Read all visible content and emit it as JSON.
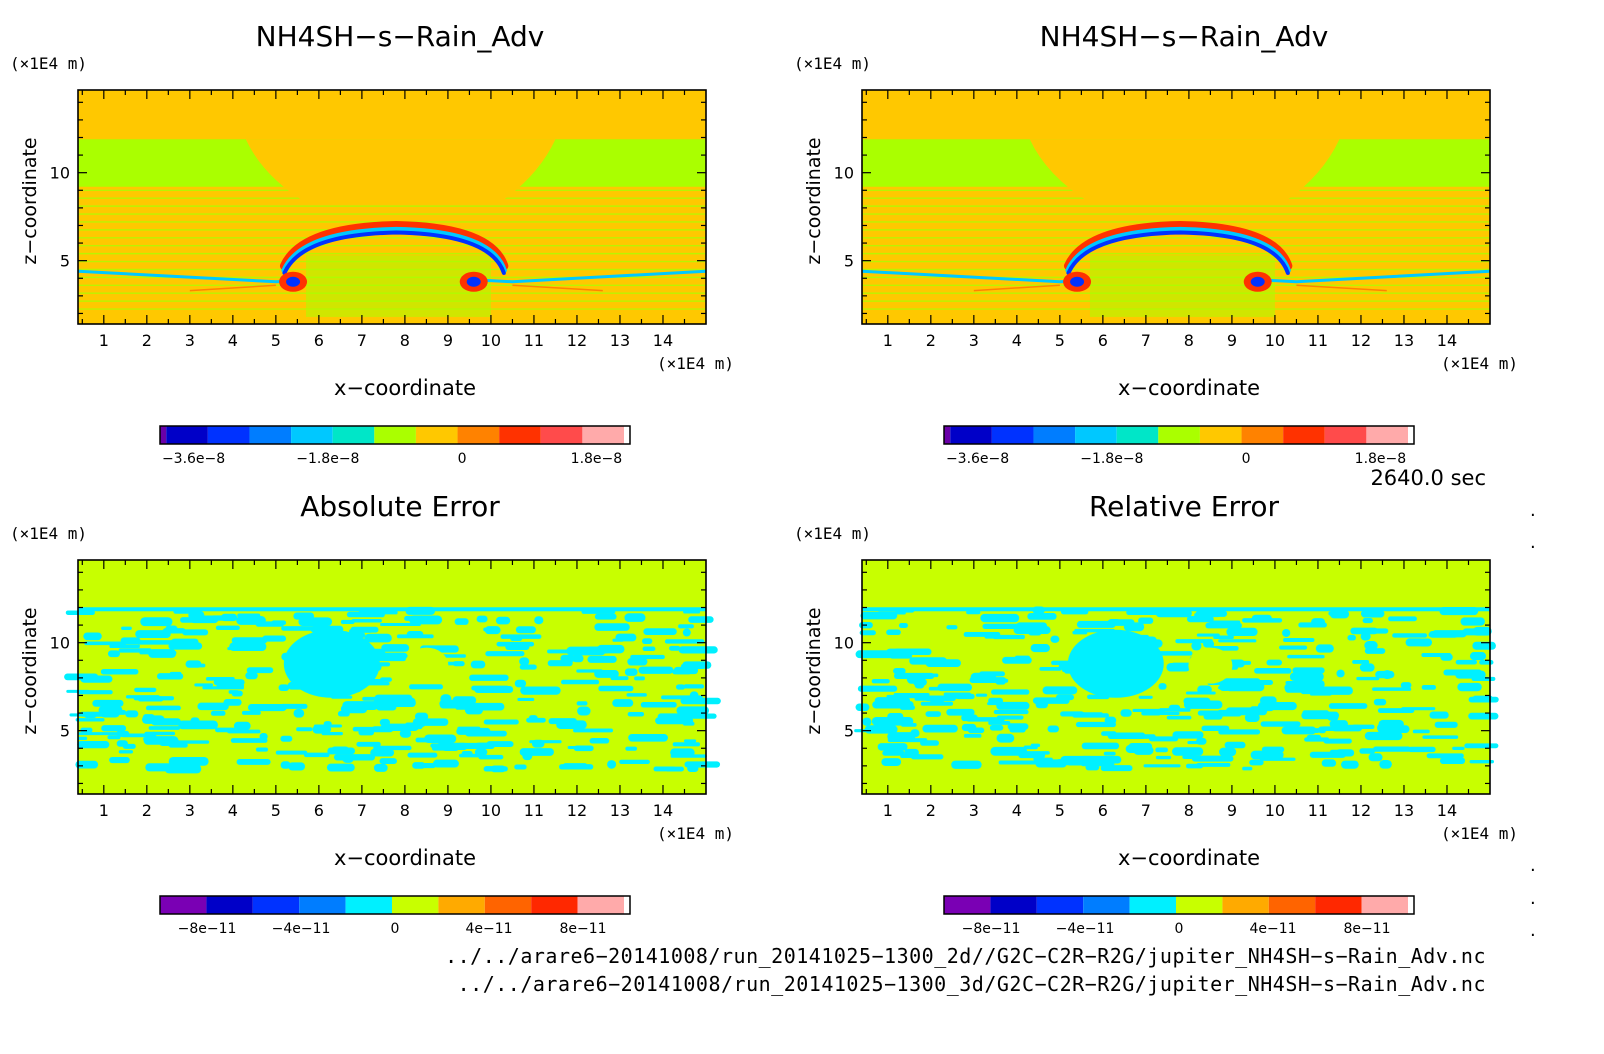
{
  "charts": [
    {
      "id": "p1",
      "title": "NH4SH−s−Rain_Adv",
      "y_unit": "(×1E4 m)",
      "x_unit": "(×1E4 m)",
      "xlabel": "x−coordinate",
      "ylabel": "z−coordinate",
      "x_ticks": [
        "1",
        "2",
        "3",
        "4",
        "5",
        "6",
        "7",
        "8",
        "9",
        "10",
        "11",
        "12",
        "13",
        "14"
      ],
      "y_ticks": [
        "5",
        "10"
      ],
      "colorbar": {
        "colors": [
          "#6a00a8",
          "#0000c8",
          "#0032ff",
          "#007dff",
          "#00c8ff",
          "#00e6c8",
          "#aaff00",
          "#ffc800",
          "#ff8200",
          "#ff3200",
          "#ff4b4b",
          "#ffaaaa"
        ],
        "tick_labels": [
          "−3.6e−8",
          "−1.8e−8",
          "0",
          "1.8e−8"
        ]
      }
    },
    {
      "id": "p2",
      "title": "NH4SH−s−Rain_Adv",
      "y_unit": "(×1E4 m)",
      "x_unit": "(×1E4 m)",
      "xlabel": "x−coordinate",
      "ylabel": "z−coordinate",
      "x_ticks": [
        "1",
        "2",
        "3",
        "4",
        "5",
        "6",
        "7",
        "8",
        "9",
        "10",
        "11",
        "12",
        "13",
        "14"
      ],
      "y_ticks": [
        "5",
        "10"
      ],
      "colorbar": {
        "colors": [
          "#6a00a8",
          "#0000c8",
          "#0032ff",
          "#007dff",
          "#00c8ff",
          "#00e6c8",
          "#aaff00",
          "#ffc800",
          "#ff8200",
          "#ff3200",
          "#ff4b4b",
          "#ffaaaa"
        ],
        "tick_labels": [
          "−3.6e−8",
          "−1.8e−8",
          "0",
          "1.8e−8"
        ]
      }
    },
    {
      "id": "p3",
      "title": "Absolute Error",
      "y_unit": "(×1E4 m)",
      "x_unit": "(×1E4 m)",
      "xlabel": "x−coordinate",
      "ylabel": "z−coordinate",
      "x_ticks": [
        "1",
        "2",
        "3",
        "4",
        "5",
        "6",
        "7",
        "8",
        "9",
        "10",
        "11",
        "12",
        "13",
        "14"
      ],
      "y_ticks": [
        "5",
        "10"
      ],
      "colorbar": {
        "colors": [
          "#7a00b4",
          "#0000c8",
          "#0032ff",
          "#007dff",
          "#00f0ff",
          "#c8ff00",
          "#ffaa00",
          "#ff6400",
          "#ff2800",
          "#ffaaaa"
        ],
        "tick_labels": [
          "−8e−11",
          "−4e−11",
          "0",
          "4e−11",
          "8e−11"
        ]
      }
    },
    {
      "id": "p4",
      "title": "Relative Error",
      "y_unit": "(×1E4 m)",
      "x_unit": "(×1E4 m)",
      "xlabel": "x−coordinate",
      "ylabel": "z−coordinate",
      "x_ticks": [
        "1",
        "2",
        "3",
        "4",
        "5",
        "6",
        "7",
        "8",
        "9",
        "10",
        "11",
        "12",
        "13",
        "14"
      ],
      "y_ticks": [
        "5",
        "10"
      ],
      "colorbar": {
        "colors": [
          "#7a00b4",
          "#0000c8",
          "#0032ff",
          "#007dff",
          "#00f0ff",
          "#c8ff00",
          "#ffaa00",
          "#ff6400",
          "#ff2800",
          "#ffaaaa"
        ],
        "tick_labels": [
          "−8e−11",
          "−4e−11",
          "0",
          "4e−11",
          "8e−11"
        ]
      }
    }
  ],
  "chart_data": [
    {
      "type": "heatmap",
      "title": "NH4SH−s−Rain_Adv",
      "xlabel": "x−coordinate",
      "ylabel": "z−coordinate",
      "x_range": [
        0,
        15
      ],
      "y_range": [
        1,
        15
      ],
      "colorbar_range": [
        -4.05e-08,
        2.25e-08
      ],
      "colorbar_labels": [
        "−3.6e−8",
        "−1.8e−8",
        "0",
        "1.8e−8"
      ]
    },
    {
      "type": "heatmap",
      "title": "NH4SH−s−Rain_Adv",
      "xlabel": "x−coordinate",
      "ylabel": "z−coordinate",
      "x_range": [
        0,
        15
      ],
      "y_range": [
        1,
        15
      ],
      "colorbar_range": [
        -4.05e-08,
        2.25e-08
      ],
      "colorbar_labels": [
        "−3.6e−8",
        "−1.8e−8",
        "0",
        "1.8e−8"
      ]
    },
    {
      "type": "heatmap",
      "title": "Absolute Error",
      "xlabel": "x−coordinate",
      "ylabel": "z−coordinate",
      "x_range": [
        0,
        15
      ],
      "y_range": [
        1,
        15
      ],
      "colorbar_range": [
        -1e-10,
        1e-10
      ],
      "colorbar_labels": [
        "−8e−11",
        "−4e−11",
        "0",
        "4e−11",
        "8e−11"
      ]
    },
    {
      "type": "heatmap",
      "title": "Relative Error",
      "xlabel": "x−coordinate",
      "ylabel": "z−coordinate",
      "x_range": [
        0,
        15
      ],
      "y_range": [
        1,
        15
      ],
      "colorbar_range": [
        -1e-10,
        1e-10
      ],
      "colorbar_labels": [
        "−8e−11",
        "−4e−11",
        "0",
        "4e−11",
        "8e−11"
      ]
    }
  ],
  "timestamp": "2640.0 sec",
  "footer": {
    "line1": "../../arare6−20141008/run_20141025−1300_2d//G2C−C2R−R2G/jupiter_NH4SH−s−Rain_Adv.nc",
    "line2": "../../arare6−20141008/run_20141025−1300_3d/G2C−C2R−R2G/jupiter_NH4SH−s−Rain_Adv.nc"
  }
}
